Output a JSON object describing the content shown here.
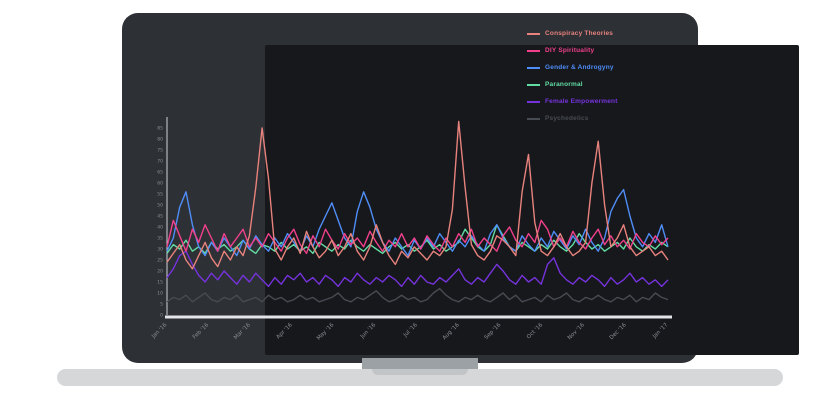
{
  "page": {
    "background": "#ffffff"
  },
  "laptop": {
    "frame_color": "#2d3035",
    "screen_color": "#17181c",
    "base_color": "#d5d7d9"
  },
  "chart_data": {
    "type": "line",
    "title": "",
    "xlabel": "",
    "ylabel": "",
    "ylim": [
      0,
      90
    ],
    "grid": false,
    "legend_position": "top-right",
    "axis_color": "#e3e5e8",
    "tick_label_color": "#8b9096",
    "yticks": [
      0,
      5,
      10,
      15,
      20,
      25,
      30,
      35,
      40,
      45,
      50,
      55,
      60,
      65,
      70,
      75,
      80,
      85
    ],
    "xticks": [
      "Jan '16",
      "Feb '16",
      "Mar '16",
      "Apr '16",
      "May '16",
      "Jun '16",
      "Jul '16",
      "Aug '16",
      "Sep '16",
      "Oct '16",
      "Nov '16",
      "Dec '16",
      "Jan '17"
    ],
    "series": [
      {
        "name": "Conspiracy Theories",
        "color": "#e8827d",
        "values": [
          24,
          28,
          32,
          25,
          21,
          27,
          33,
          26,
          22,
          29,
          25,
          31,
          27,
          36,
          58,
          85,
          62,
          30,
          25,
          31,
          35,
          28,
          38,
          31,
          26,
          29,
          34,
          27,
          31,
          37,
          29,
          25,
          31,
          41,
          33,
          27,
          23,
          29,
          26,
          31,
          28,
          25,
          29,
          27,
          31,
          48,
          88,
          58,
          32,
          27,
          25,
          29,
          36,
          34,
          31,
          27,
          56,
          73,
          42,
          29,
          27,
          31,
          37,
          31,
          27,
          29,
          33,
          60,
          79,
          50,
          31,
          35,
          41,
          31,
          27,
          29,
          31,
          27,
          29,
          25
        ]
      },
      {
        "name": "DIY Spirituality",
        "color": "#f0408c",
        "values": [
          31,
          43,
          36,
          29,
          39,
          33,
          41,
          35,
          29,
          37,
          31,
          35,
          39,
          31,
          35,
          31,
          37,
          33,
          29,
          35,
          39,
          32,
          28,
          36,
          31,
          39,
          34,
          30,
          37,
          32,
          35,
          31,
          38,
          33,
          29,
          34,
          31,
          37,
          31,
          35,
          30,
          36,
          32,
          29,
          35,
          31,
          37,
          33,
          39,
          31,
          35,
          32,
          29,
          36,
          40,
          34,
          31,
          37,
          33,
          43,
          39,
          31,
          35,
          31,
          38,
          33,
          30,
          35,
          39,
          32,
          36,
          31,
          34,
          30,
          37,
          33,
          31,
          36,
          32,
          35
        ]
      },
      {
        "name": "Gender & Androgyny",
        "color": "#4f8df7",
        "values": [
          29,
          35,
          49,
          56,
          41,
          31,
          27,
          33,
          29,
          35,
          31,
          27,
          34,
          30,
          36,
          32,
          29,
          35,
          31,
          37,
          33,
          29,
          36,
          31,
          39,
          45,
          51,
          43,
          35,
          31,
          47,
          56,
          49,
          39,
          33,
          29,
          35,
          31,
          27,
          34,
          30,
          35,
          31,
          37,
          33,
          29,
          34,
          31,
          36,
          32,
          29,
          37,
          41,
          35,
          31,
          29,
          36,
          32,
          29,
          35,
          31,
          38,
          34,
          30,
          36,
          32,
          39,
          33,
          29,
          35,
          47,
          53,
          57,
          45,
          35,
          31,
          37,
          33,
          41,
          31
        ]
      },
      {
        "name": "Paranormal",
        "color": "#62dca2",
        "values": [
          28,
          32,
          30,
          34,
          29,
          31,
          28,
          33,
          30,
          32,
          29,
          31,
          34,
          30,
          28,
          32,
          31,
          29,
          33,
          30,
          32,
          29,
          31,
          28,
          33,
          31,
          29,
          32,
          30,
          34,
          31,
          29,
          32,
          30,
          28,
          31,
          33,
          30,
          32,
          29,
          31,
          34,
          30,
          32,
          29,
          31,
          33,
          39,
          35,
          31,
          29,
          32,
          41,
          36,
          31,
          29,
          33,
          31,
          29,
          32,
          30,
          34,
          31,
          29,
          32,
          37,
          33,
          30,
          32,
          29,
          31,
          33,
          30,
          35,
          31,
          29,
          32,
          30,
          33,
          31
        ]
      },
      {
        "name": "Female Empowerment",
        "color": "#7633dd",
        "values": [
          17,
          21,
          27,
          29,
          23,
          18,
          15,
          19,
          16,
          20,
          17,
          14,
          18,
          15,
          19,
          16,
          13,
          17,
          14,
          18,
          16,
          19,
          15,
          17,
          14,
          18,
          16,
          13,
          17,
          15,
          19,
          16,
          14,
          17,
          15,
          18,
          16,
          13,
          17,
          14,
          18,
          15,
          14,
          17,
          15,
          18,
          21,
          16,
          14,
          17,
          15,
          19,
          23,
          20,
          16,
          14,
          18,
          15,
          17,
          14,
          23,
          26,
          19,
          16,
          14,
          17,
          15,
          18,
          16,
          13,
          17,
          14,
          16,
          19,
          15,
          17,
          14,
          16,
          13,
          16
        ]
      },
      {
        "name": "Psychedelics",
        "color": "#474b52",
        "values": [
          6,
          8,
          7,
          9,
          6,
          8,
          10,
          7,
          6,
          8,
          7,
          9,
          6,
          7,
          8,
          6,
          9,
          7,
          8,
          6,
          7,
          9,
          7,
          8,
          6,
          7,
          8,
          10,
          7,
          6,
          8,
          7,
          9,
          11,
          8,
          6,
          7,
          9,
          7,
          8,
          6,
          7,
          10,
          12,
          9,
          7,
          6,
          8,
          7,
          9,
          7,
          6,
          8,
          10,
          7,
          9,
          6,
          7,
          8,
          6,
          9,
          7,
          8,
          10,
          7,
          6,
          8,
          7,
          9,
          7,
          6,
          8,
          7,
          9,
          6,
          8,
          7,
          10,
          8,
          7
        ]
      }
    ]
  }
}
